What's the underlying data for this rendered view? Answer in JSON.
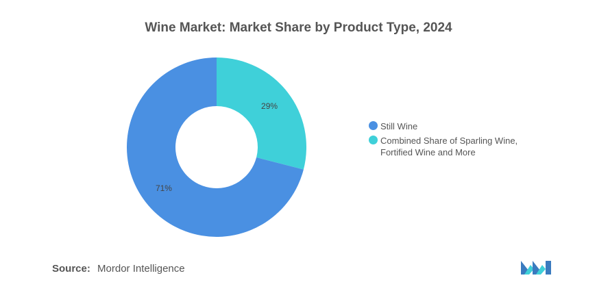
{
  "title": "Wine Market: Market Share by Product Type, 2024",
  "chart_data": {
    "type": "pie",
    "title": "Wine Market: Market Share by Product Type, 2024",
    "series": [
      {
        "name": "Still Wine",
        "value": 71,
        "label": "71%",
        "color": "#4a90e2"
      },
      {
        "name": "Combined Share of Sparling Wine, Fortified Wine and More",
        "value": 29,
        "label": "29%",
        "color": "#3fd0d9"
      }
    ],
    "legend_placement": "right"
  },
  "source": {
    "label": "Source:",
    "text": "Mordor Intelligence"
  },
  "logo": {
    "icon": "mordor-intelligence-logo"
  }
}
